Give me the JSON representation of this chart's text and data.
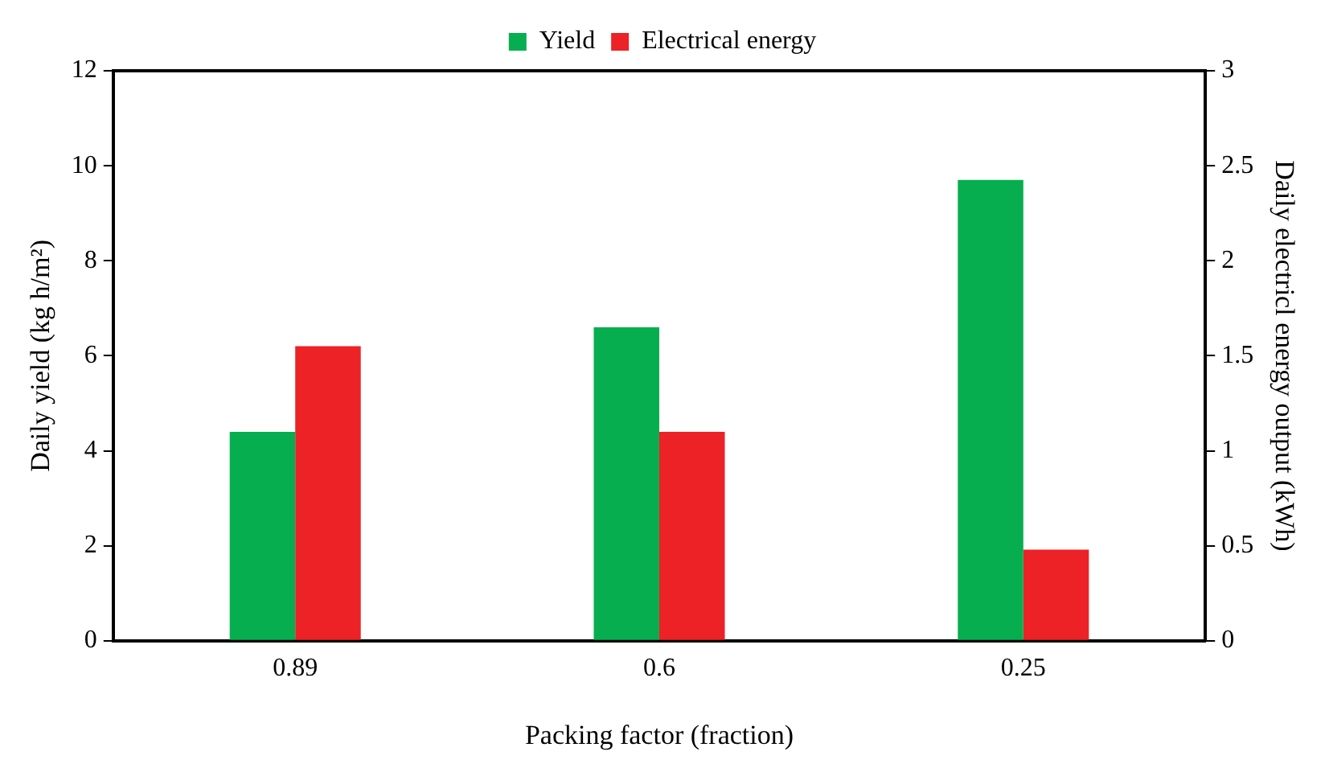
{
  "chart_data": {
    "type": "bar",
    "xlabel": "Packing factor (fraction)",
    "ylabel": "Daily yield (kg h/m²)",
    "y2label": "Daily electricl energy output (kWh)",
    "categories": [
      "0.89",
      "0.6",
      "0.25"
    ],
    "series": [
      {
        "name": "Yield",
        "color": "#06ae4f",
        "values": [
          4.4,
          6.6,
          9.7
        ]
      },
      {
        "name": "Electrical energy",
        "color": "#ec2227",
        "values": [
          1.55,
          1.1,
          0.48
        ],
        "axis": "y2"
      }
    ],
    "ylim": [
      0,
      12
    ],
    "yticks": [
      0,
      2,
      4,
      6,
      8,
      10,
      12
    ],
    "y2lim": [
      0,
      3
    ],
    "y2ticks": [
      0,
      0.5,
      1,
      1.5,
      2,
      2.5,
      3
    ],
    "grid": false,
    "legend": "top"
  }
}
